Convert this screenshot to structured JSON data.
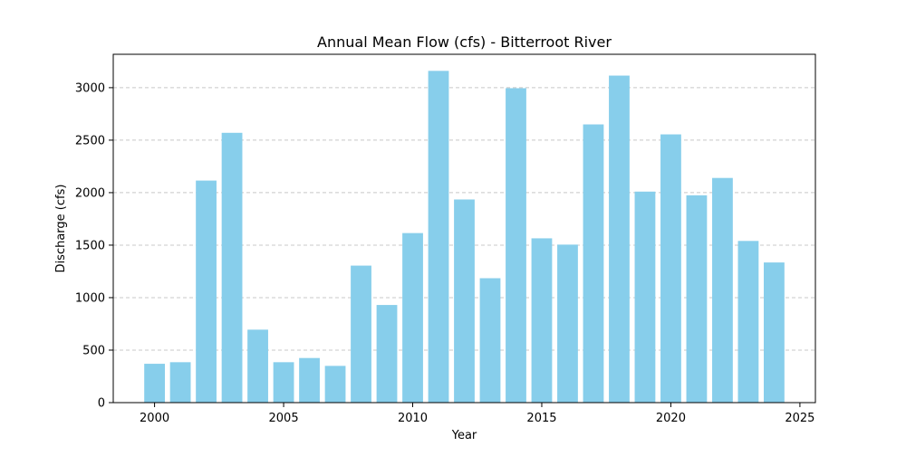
{
  "chart_data": {
    "type": "bar",
    "title": "Annual Mean Flow (cfs) - Bitterroot River",
    "xlabel": "Year",
    "ylabel": "Discharge (cfs)",
    "x": [
      2000,
      2001,
      2002,
      2003,
      2004,
      2005,
      2006,
      2007,
      2008,
      2009,
      2010,
      2011,
      2012,
      2013,
      2014,
      2015,
      2016,
      2017,
      2018,
      2019,
      2020,
      2021,
      2022,
      2023,
      2024
    ],
    "values": [
      370,
      385,
      2115,
      2570,
      695,
      385,
      425,
      350,
      1305,
      930,
      1615,
      3160,
      1935,
      1185,
      2995,
      1565,
      1505,
      2650,
      3115,
      2010,
      2555,
      1975,
      2140,
      1540,
      1335
    ],
    "xlim": [
      1998.4,
      2025.6
    ],
    "ylim": [
      0,
      3318
    ],
    "xticks": [
      2000,
      2005,
      2010,
      2015,
      2020,
      2025
    ],
    "yticks": [
      0,
      500,
      1000,
      1500,
      2000,
      2500,
      3000
    ],
    "grid": "y-dashed",
    "bar_color": "#87CEEB"
  }
}
